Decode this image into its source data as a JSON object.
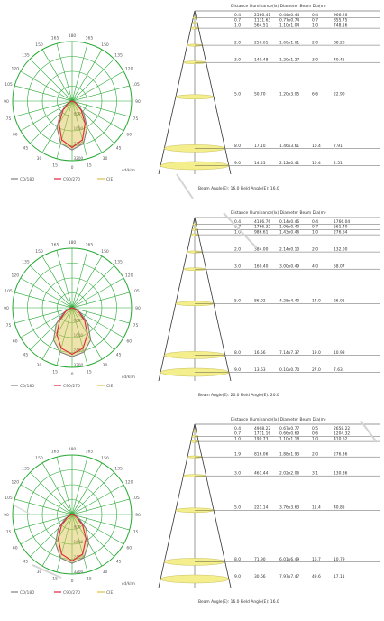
{
  "colors": {
    "grid": "#27a833",
    "c0": "#808080",
    "c90": "#e0233c",
    "cross": "#d9c24a",
    "spot": "#f4ee8c",
    "spot_edge": "#c8c060",
    "line": "#333333",
    "deco": "#d2d2d2"
  },
  "polar_angles": [
    "180",
    "165",
    "150",
    "135",
    "120",
    "105",
    "90",
    "75",
    "60",
    "45",
    "30",
    "15",
    "0"
  ],
  "cone_header": "Distance Illuminance(lx) Diameter Beam Dia(m)",
  "panels": [
    {
      "id": "panel-1",
      "polar": {
        "ring_values": [
          "800",
          "1600",
          "2400",
          "3200"
        ],
        "unit": "cd/klm",
        "legend": [
          "C0/180",
          "C90/270",
          "CIE"
        ],
        "beam_profile": [
          1.0,
          0.9,
          0.62,
          0.33,
          0.12,
          0.03,
          0
        ],
        "beam_profile_90": [
          1.0,
          0.86,
          0.56,
          0.28,
          0.1,
          0.03,
          0
        ]
      },
      "cone": {
        "footer": "Beam Angle(E): 16.0  Field Angle(E): 16.0",
        "rows": [
          {
            "d": "0.4",
            "e": "2586.41",
            "dia": "0.44x0.44",
            "b": "0.4",
            "f": "966.26"
          },
          {
            "d": "0.7",
            "e": "1131.63",
            "dia": "0.77x0.74",
            "b": "0.7",
            "f": "855.75"
          },
          {
            "d": "1.0",
            "e": "564.51",
            "dia": "1.10x1.04",
            "b": "1.0",
            "f": "748.16"
          },
          {
            "d": "2.0",
            "e": "256.61",
            "dia": "1.60x1.61",
            "b": "2.0",
            "f": "88.26"
          },
          {
            "d": "3.0",
            "e": "140.48",
            "dia": "1.20x1.27",
            "b": "3.0",
            "f": "40.45"
          },
          {
            "d": "5.0",
            "e": "50.70",
            "dia": "1.20x3.05",
            "b": "6.6",
            "f": "22.90"
          },
          {
            "d": "8.0",
            "e": "17.10",
            "dia": "1.46x3.61",
            "b": "10.4",
            "f": "7.91"
          },
          {
            "d": "9.0",
            "e": "14.45",
            "dia": "2.12x0.41",
            "b": "10.4",
            "f": "2.51"
          }
        ]
      }
    },
    {
      "id": "panel-2",
      "polar": {
        "ring_values": [
          "800",
          "1600",
          "2400",
          "3200"
        ],
        "unit": "cd/klm",
        "legend": [
          "C0/180",
          "C90/270",
          "CIE"
        ],
        "beam_profile": [
          1.0,
          0.94,
          0.76,
          0.46,
          0.2,
          0.05,
          0
        ],
        "beam_profile_90": [
          1.0,
          0.9,
          0.66,
          0.38,
          0.16,
          0.04,
          0
        ]
      },
      "cone": {
        "footer": "Beam Angle(E): 20.0  Field Angle(E): 20.0",
        "rows": [
          {
            "d": "0.4",
            "e": "4186.76",
            "dia": "0.14x0.46",
            "b": "0.4",
            "f": "1766.04"
          },
          {
            "d": "0.7",
            "e": "1766.32",
            "dia": "1.06x0.40",
            "b": "0.7",
            "f": "561.40"
          },
          {
            "d": "1.0",
            "e": "986.61",
            "dia": "1.43x0.46",
            "b": "1.0",
            "f": "276.64"
          },
          {
            "d": "2.0",
            "e": "384.00",
            "dia": "2.14x0.10",
            "b": "2.0",
            "f": "132.00"
          },
          {
            "d": "3.0",
            "e": "160.40",
            "dia": "3.00x0.49",
            "b": "4.0",
            "f": "58.07"
          },
          {
            "d": "5.0",
            "e": "86.02",
            "dia": "4.28x4.40",
            "b": "14.0",
            "f": "26.01"
          },
          {
            "d": "8.0",
            "e": "16.56",
            "dia": "7.14x7.37",
            "b": "19.0",
            "f": "10.98"
          },
          {
            "d": "9.0",
            "e": "13.63",
            "dia": "0.10x0.70",
            "b": "27.0",
            "f": "7.63"
          }
        ]
      }
    },
    {
      "id": "panel-3",
      "polar": {
        "ring_values": [
          "800",
          "1600",
          "2400",
          "3200"
        ],
        "unit": "cd/klm",
        "legend": [
          "C0/180",
          "C90/270",
          "CIE"
        ],
        "beam_profile": [
          1.0,
          0.92,
          0.68,
          0.4,
          0.16,
          0.04,
          0
        ],
        "beam_profile_90": [
          1.0,
          0.88,
          0.6,
          0.32,
          0.12,
          0.03,
          0
        ]
      },
      "cone": {
        "footer": "Beam Angle(E): 16.0  Field Angle(E): 16.0",
        "rows": [
          {
            "d": "0.4",
            "e": "4908.22",
            "dia": "0.67x0.77",
            "b": "0.5",
            "f": "2658.22"
          },
          {
            "d": "0.7",
            "e": "1711.16",
            "dia": "0.66x0.69",
            "b": "0.6",
            "f": "1204.32"
          },
          {
            "d": "1.0",
            "e": "190.73",
            "dia": "1.10x1.18",
            "b": "1.0",
            "f": "410.62"
          },
          {
            "d": "1.9",
            "e": "816.06",
            "dia": "1.88x1.93",
            "b": "2.0",
            "f": "276.36"
          },
          {
            "d": "3.0",
            "e": "461.44",
            "dia": "2.02x2.06",
            "b": "3.1",
            "f": "130.86"
          },
          {
            "d": "5.0",
            "e": "221.14",
            "dia": "3.76x3.63",
            "b": "11.4",
            "f": "40.85"
          },
          {
            "d": "8.0",
            "e": "71.90",
            "dia": "6.01x6.49",
            "b": "16.7",
            "f": "10.79"
          },
          {
            "d": "9.0",
            "e": "30.66",
            "dia": "7.97x7.47",
            "b": "49.6",
            "f": "17.11"
          }
        ]
      }
    }
  ]
}
